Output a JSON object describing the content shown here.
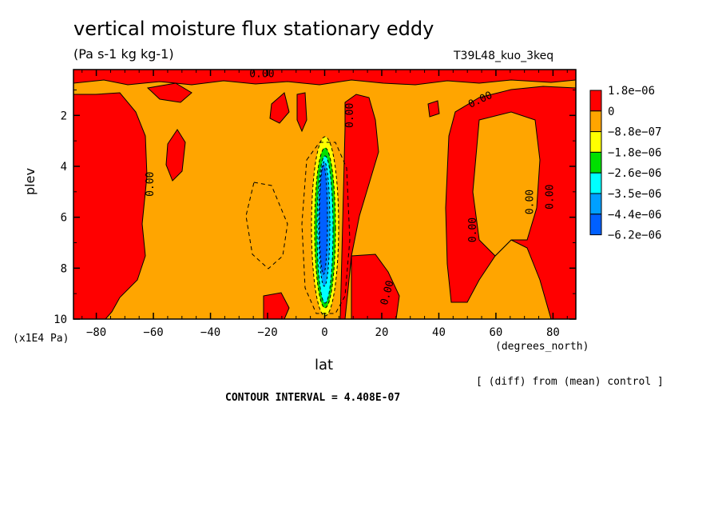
{
  "title": "vertical moisture flux stationary eddy",
  "units": "(Pa s-1 kg kg-1)",
  "run_label": "T39L48_kuo_3keq",
  "y_axis_label": "plev",
  "y_multiplier": "(x1E4 Pa)",
  "x_axis_label": "lat",
  "x_units": "(degrees_north)",
  "diff_note": "[ (diff) from (mean) control ]",
  "contour_interval": "CONTOUR INTERVAL = 4.408E-07",
  "contour_label": "0.00",
  "chart_data": {
    "type": "heatmap",
    "x_ticks": [
      -80,
      -60,
      -40,
      -20,
      0,
      20,
      40,
      60,
      80
    ],
    "x_tick_labels": [
      "−80",
      "−60",
      "−40",
      "−20",
      "0",
      "20",
      "40",
      "60",
      "80"
    ],
    "xlim": [
      -88,
      88
    ],
    "y_ticks": [
      2,
      4,
      6,
      8,
      10
    ],
    "y_tick_labels": [
      "2",
      "4",
      "6",
      "8",
      "10"
    ],
    "ylim": [
      10,
      0.2
    ],
    "colorbar": {
      "levels": [
        "1.8e−06",
        "0",
        "−8.8e−07",
        "−1.8e−06",
        "−2.6e−06",
        "−3.5e−06",
        "−4.4e−06",
        "−6.2e−06"
      ],
      "colors": [
        "#ff0000",
        "#ffa500",
        "#ffff00",
        "#00e000",
        "#00ffff",
        "#00a0ff",
        "#0060ff"
      ]
    },
    "regions": [
      {
        "level": "positive (0 to 1.8e-06)",
        "color": "#ff0000",
        "lat_range": [
          -88,
          -70
        ],
        "plev_range": [
          0.8,
          10
        ]
      },
      {
        "level": "positive (0 to 1.8e-06)",
        "color": "#ff0000",
        "lat_range": [
          7,
          16
        ],
        "plev_range": [
          1.3,
          9.5
        ]
      },
      {
        "level": "positive (0 to 1.8e-06)",
        "color": "#ff0000",
        "lat_range": [
          45,
          88
        ],
        "plev_range": [
          1.0,
          10
        ]
      },
      {
        "level": "negative minimum (-6.2e-06)",
        "color": "#0060ff",
        "lat_range": [
          -2,
          3
        ],
        "plev_range": [
          3.8,
          9.3
        ]
      }
    ],
    "contour_labels": [
      "0.00",
      "0.00",
      "0.00",
      "0.00",
      "0.00",
      "0.00",
      "0.00",
      "0.00"
    ]
  }
}
